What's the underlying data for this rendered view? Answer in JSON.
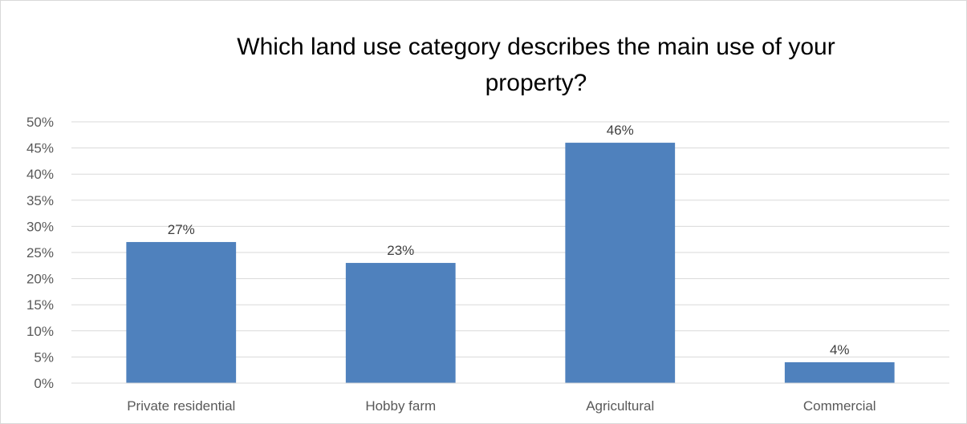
{
  "chart_data": {
    "type": "bar",
    "title_lines": [
      "Which land use category describes the main use of your",
      "property?"
    ],
    "categories": [
      "Private residential",
      "Hobby farm",
      "Agricultural",
      "Commercial"
    ],
    "values": [
      27,
      23,
      46,
      4
    ],
    "data_labels": [
      "27%",
      "23%",
      "46%",
      "4%"
    ],
    "ylim": [
      0,
      50
    ],
    "y_ticks": [
      0,
      5,
      10,
      15,
      20,
      25,
      30,
      35,
      40,
      45,
      50
    ],
    "y_tick_labels": [
      "0%",
      "5%",
      "10%",
      "15%",
      "20%",
      "25%",
      "30%",
      "35%",
      "40%",
      "45%",
      "50%"
    ],
    "grid": true,
    "bar_color": "#4f81bd",
    "legend": "none"
  }
}
